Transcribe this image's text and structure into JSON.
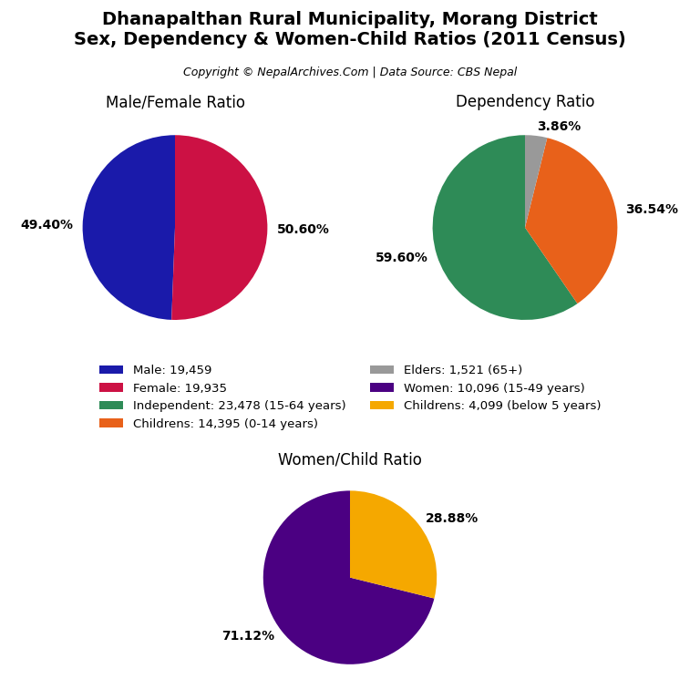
{
  "title": "Dhanapalthan Rural Municipality, Morang District\nSex, Dependency & Women-Child Ratios (2011 Census)",
  "subtitle": "Copyright © NepalArchives.Com | Data Source: CBS Nepal",
  "legend": "center",
  "chart_data": [
    {
      "type": "pie",
      "title": "Male/Female Ratio",
      "categories": [
        "Male: 19,459",
        "Female: 19,935"
      ],
      "values": [
        49.4,
        50.6
      ],
      "value_labels": [
        "49.40%",
        "50.60%"
      ],
      "colors": [
        "#1a1aaa",
        "#cc1144"
      ],
      "data_labels": true
    },
    {
      "type": "pie",
      "title": "Dependency Ratio",
      "categories": [
        "Independent: 23,478 (15-64 years)",
        "Childrens: 14,395 (0-14 years)",
        "Elders: 1,521 (65+)"
      ],
      "values": [
        59.6,
        36.54,
        3.86
      ],
      "value_labels": [
        "59.60%",
        "36.54%",
        "3.86%"
      ],
      "colors": [
        "#2e8b57",
        "#e8611a",
        "#999999"
      ],
      "data_labels": true
    },
    {
      "type": "pie",
      "title": "Women/Child Ratio",
      "categories": [
        "Women: 10,096 (15-49 years)",
        "Childrens: 4,099 (below 5 years)"
      ],
      "values": [
        71.12,
        28.88
      ],
      "value_labels": [
        "71.12%",
        "28.88%"
      ],
      "colors": [
        "#4b0082",
        "#f5a800"
      ],
      "data_labels": true
    }
  ]
}
